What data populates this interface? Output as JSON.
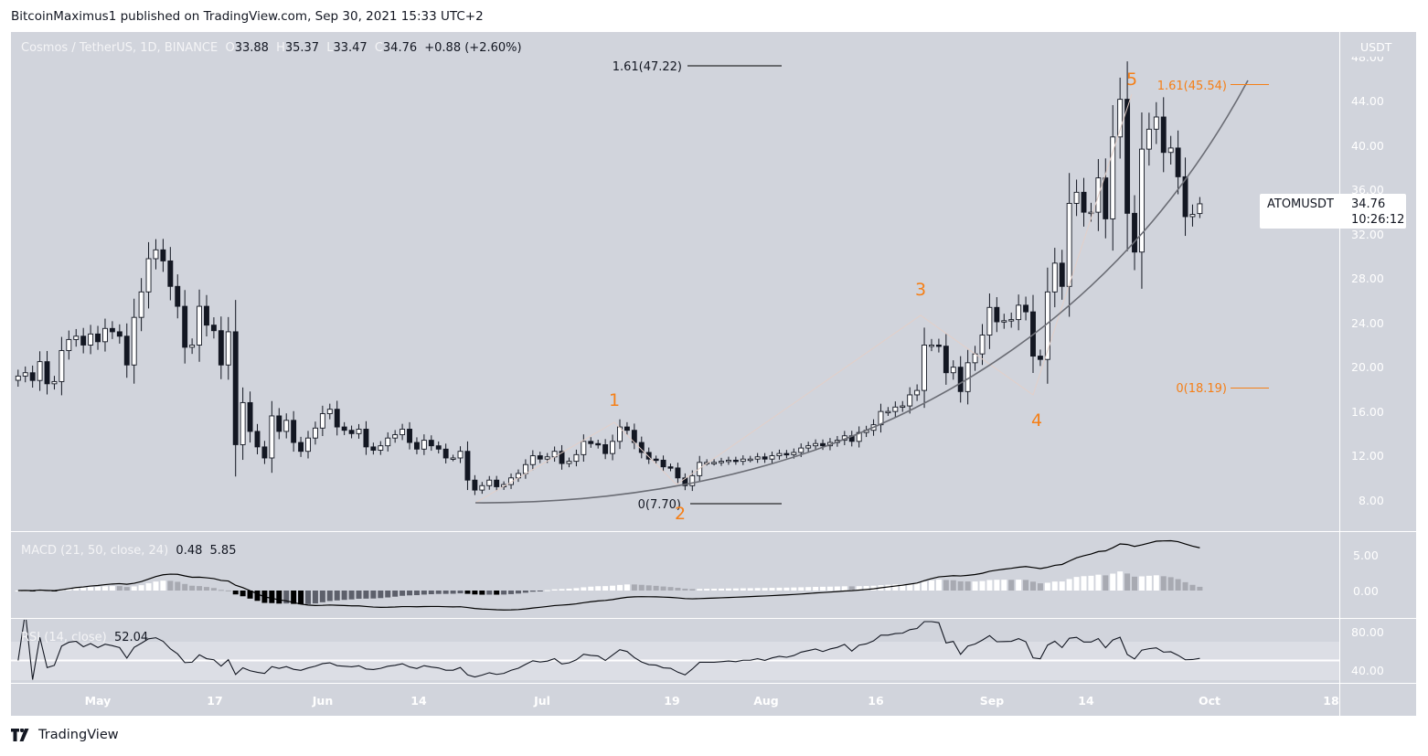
{
  "published": "BitcoinMaximus1 published on TradingView.com, Sep 30, 2021 15:33 UTC+2",
  "legend": {
    "symbol": "Cosmos / TetherUS, 1D, BINANCE",
    "o_label": "O",
    "o": "33.88",
    "h_label": "H",
    "h": "35.37",
    "l_label": "L",
    "l": "33.47",
    "c_label": "C",
    "c": "34.76",
    "change": "+0.88 (+2.60%)"
  },
  "price_axis": {
    "currency": "USDT",
    "ticks": [
      "48.00",
      "44.00",
      "40.00",
      "36.00",
      "32.00",
      "28.00",
      "24.00",
      "20.00",
      "16.00",
      "12.00",
      "8.00"
    ]
  },
  "price_tag": {
    "symbol": "ATOMUSDT",
    "price": "34.76",
    "countdown": "10:26:12"
  },
  "macd": {
    "label": "MACD (21, 50, close, 24)",
    "v1": "0.48",
    "v2": "5.85",
    "ticks": [
      "5.00",
      "0.00"
    ]
  },
  "rsi": {
    "label": "RSI (14, close)",
    "value": "52.04",
    "ticks": [
      "80.00",
      "40.00"
    ]
  },
  "time_axis": [
    "May",
    "17",
    "Jun",
    "14",
    "Jul",
    "19",
    "Aug",
    "16",
    "Sep",
    "14",
    "Oct",
    "18"
  ],
  "annotations": {
    "fib_black_top": "1.61(47.22)",
    "fib_black_bottom": "0(7.70)",
    "fib_orange_top": "1.61(45.54)",
    "fib_orange_bottom": "0(18.19)",
    "waves": [
      "1",
      "2",
      "3",
      "4",
      "5"
    ]
  },
  "footer": {
    "brand": "TradingView"
  },
  "colors": {
    "background": "#d1d4dc",
    "up": "#ffffff",
    "down": "#131722",
    "annotation": "#f57f17"
  },
  "chart_data": {
    "type": "candlestick",
    "title": "Cosmos / TetherUS, 1D, BINANCE",
    "x_start": "2021-04-20",
    "x_end": "2021-09-30",
    "interval": "1D",
    "ylabel": "USDT",
    "ylim": [
      6,
      50
    ],
    "grid": false,
    "close": [
      19.2,
      19.5,
      18.8,
      20.5,
      18.5,
      18.7,
      21.5,
      22.5,
      22.8,
      22.0,
      23.0,
      22.3,
      23.5,
      23.2,
      22.8,
      20.2,
      24.5,
      26.8,
      29.8,
      30.6,
      29.6,
      27.3,
      25.5,
      21.8,
      22.0,
      25.5,
      23.8,
      23.3,
      20.2,
      23.2,
      13.0,
      16.8,
      14.2,
      12.8,
      11.8,
      15.6,
      14.2,
      15.2,
      13.2,
      12.4,
      13.6,
      14.5,
      15.8,
      16.2,
      14.6,
      14.3,
      14.0,
      14.4,
      12.8,
      12.5,
      12.9,
      13.6,
      13.9,
      14.4,
      13.2,
      12.6,
      13.4,
      12.9,
      12.6,
      11.8,
      11.8,
      12.4,
      9.8,
      8.9,
      9.3,
      9.8,
      9.2,
      9.4,
      10.0,
      10.4,
      11.2,
      12.0,
      11.7,
      11.9,
      12.4,
      11.3,
      11.5,
      12.1,
      13.3,
      13.1,
      13.0,
      12.2,
      13.3,
      14.6,
      14.3,
      13.2,
      12.3,
      11.7,
      11.6,
      11.0,
      10.9,
      10.0,
      9.3,
      10.2,
      11.4,
      11.4,
      11.4,
      11.5,
      11.6,
      11.5,
      11.7,
      11.7,
      11.9,
      11.7,
      12.0,
      12.2,
      12.1,
      12.3,
      12.7,
      12.9,
      13.1,
      12.9,
      13.2,
      13.4,
      13.8,
      13.3,
      14.1,
      14.3,
      14.8,
      16.0,
      16.0,
      16.4,
      16.5,
      17.5,
      17.9,
      22.0,
      22.0,
      21.9,
      19.5,
      20.0,
      17.8,
      20.4,
      21.2,
      22.9,
      25.4,
      24.1,
      24.2,
      24.3,
      25.6,
      25.0,
      21.0,
      20.7,
      26.8,
      29.4,
      27.3,
      34.8,
      35.8,
      34.0,
      34.0,
      37.1,
      33.4,
      40.8,
      44.2,
      33.9,
      30.4,
      39.7,
      41.5,
      42.6,
      39.4,
      39.8,
      37.2,
      33.6,
      33.8,
      34.76
    ],
    "last_ohlc": {
      "open": 33.88,
      "high": 35.37,
      "low": 33.47,
      "close": 34.76
    },
    "indicators": [
      {
        "name": "MACD (21, 50, close, 24)",
        "values_shown": [
          0.48,
          5.85
        ],
        "ylim": [
          -3,
          7
        ]
      },
      {
        "name": "RSI (14, close)",
        "value_shown": 52.04,
        "ylim": [
          20,
          90
        ],
        "band": [
          30,
          70
        ],
        "midline": 50
      }
    ],
    "fib_levels": [
      {
        "label": "1.61(47.22)",
        "price": 47.22
      },
      {
        "label": "0(7.70)",
        "price": 7.7
      },
      {
        "label": "1.61(45.54)",
        "price": 45.54
      },
      {
        "label": "0(18.19)",
        "price": 18.19
      }
    ],
    "wave_labels": [
      {
        "label": "1",
        "date": "2021-07-12"
      },
      {
        "label": "2",
        "date": "2021-07-20"
      },
      {
        "label": "3",
        "date": "2021-08-23"
      },
      {
        "label": "4",
        "date": "2021-09-07"
      },
      {
        "label": "5",
        "date": "2021-09-20"
      }
    ]
  }
}
